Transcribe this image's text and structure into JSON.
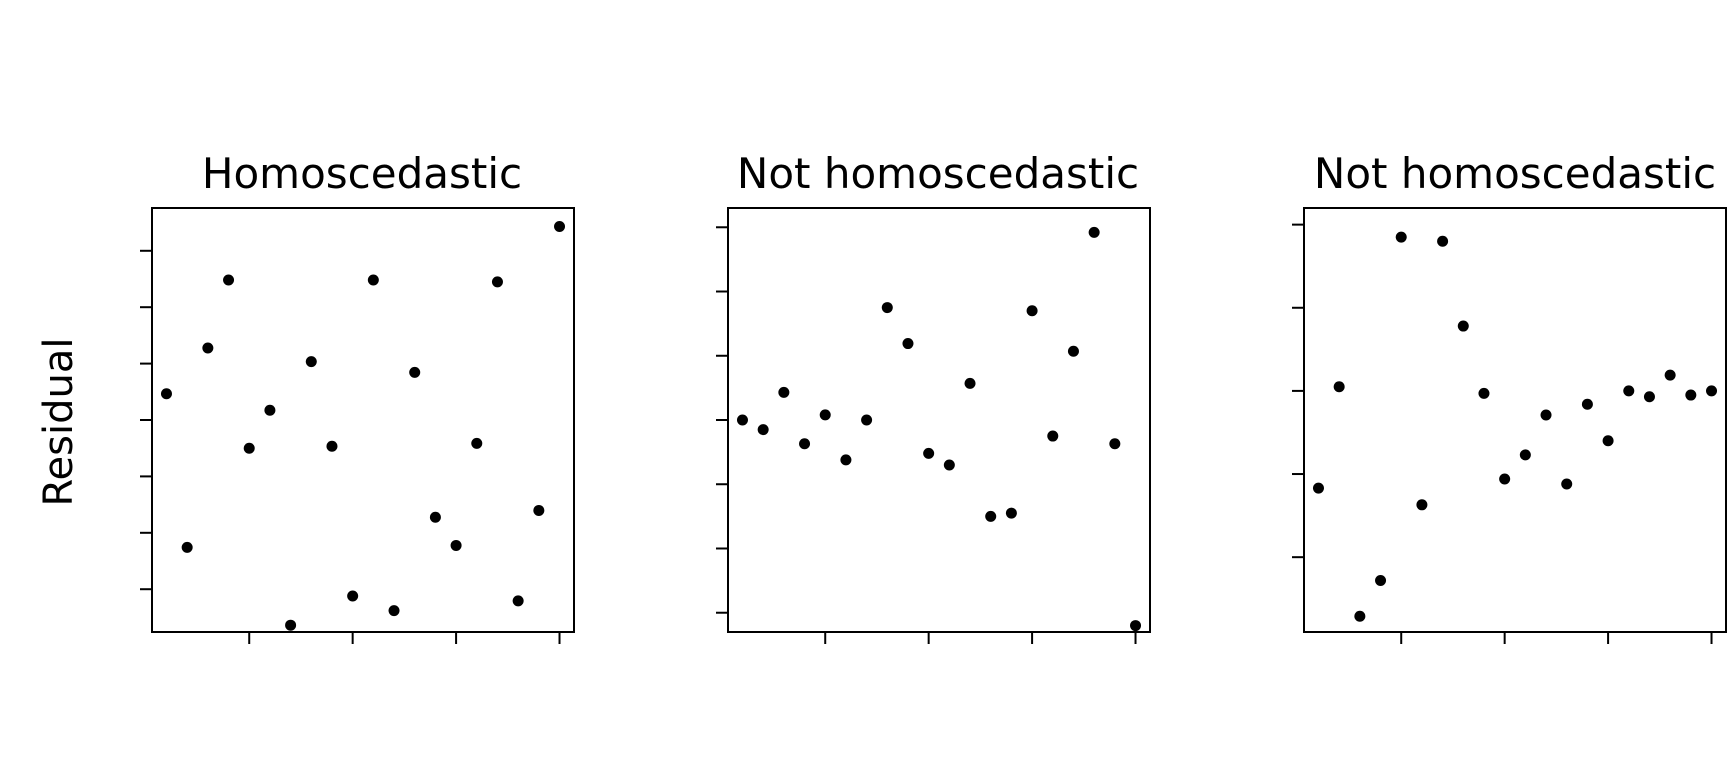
{
  "figure": {
    "ylabel": "Residual"
  },
  "chart_data": [
    {
      "type": "scatter",
      "title": "Homoscedastic",
      "xlabel": "",
      "ylabel": "Residual",
      "xlim": [
        0.3,
        20.7
      ],
      "ylim": [
        -2.18,
        2.18
      ],
      "xticks": [
        5,
        10,
        15,
        20
      ],
      "yticks": [
        -1.74,
        -1.16,
        -0.58,
        0,
        0.58,
        1.16,
        1.74
      ],
      "x": [
        1,
        2,
        3,
        4,
        5,
        6,
        7,
        8,
        9,
        10,
        11,
        12,
        13,
        14,
        15,
        16,
        17,
        18,
        19,
        20
      ],
      "y": [
        0.27,
        -1.31,
        0.74,
        1.44,
        -0.29,
        0.1,
        -2.11,
        0.6,
        -0.27,
        -1.81,
        1.44,
        -1.96,
        0.49,
        -1.0,
        -1.29,
        -0.24,
        1.42,
        -1.86,
        -0.93,
        1.99
      ]
    },
    {
      "type": "scatter",
      "title": "Not homoscedastic",
      "xlabel": "",
      "ylabel": "",
      "xlim": [
        0.3,
        20.7
      ],
      "ylim": [
        -3.3,
        3.3
      ],
      "xticks": [
        5,
        10,
        15,
        20
      ],
      "yticks": [
        -3,
        -2,
        -1,
        0,
        1,
        2,
        3
      ],
      "x": [
        1,
        2,
        3,
        4,
        5,
        6,
        7,
        8,
        9,
        10,
        11,
        12,
        13,
        14,
        15,
        16,
        17,
        18,
        19,
        20
      ],
      "y": [
        0.0,
        -0.15,
        0.43,
        -0.37,
        0.08,
        -0.62,
        0.0,
        1.75,
        1.19,
        -0.52,
        -0.7,
        0.57,
        -1.5,
        -1.45,
        1.7,
        -0.25,
        1.07,
        2.92,
        -0.37,
        -3.2
      ]
    },
    {
      "type": "scatter",
      "title": "Not homoscedastic",
      "xlabel": "",
      "ylabel": "",
      "xlim": [
        0.3,
        20.7
      ],
      "ylim": [
        -2.9,
        2.2
      ],
      "xticks": [
        5,
        10,
        15,
        20
      ],
      "yticks": [
        -2,
        -1,
        0,
        1,
        2
      ],
      "x": [
        1,
        2,
        3,
        4,
        5,
        6,
        7,
        8,
        9,
        10,
        11,
        12,
        13,
        14,
        15,
        16,
        17,
        18,
        19,
        20
      ],
      "y": [
        -1.17,
        0.05,
        -2.71,
        -2.28,
        1.85,
        -1.37,
        1.8,
        0.78,
        -0.03,
        -1.06,
        -0.77,
        -0.29,
        -1.12,
        -0.16,
        -0.6,
        0.0,
        -0.07,
        0.19,
        -0.05,
        0.0
      ]
    }
  ]
}
